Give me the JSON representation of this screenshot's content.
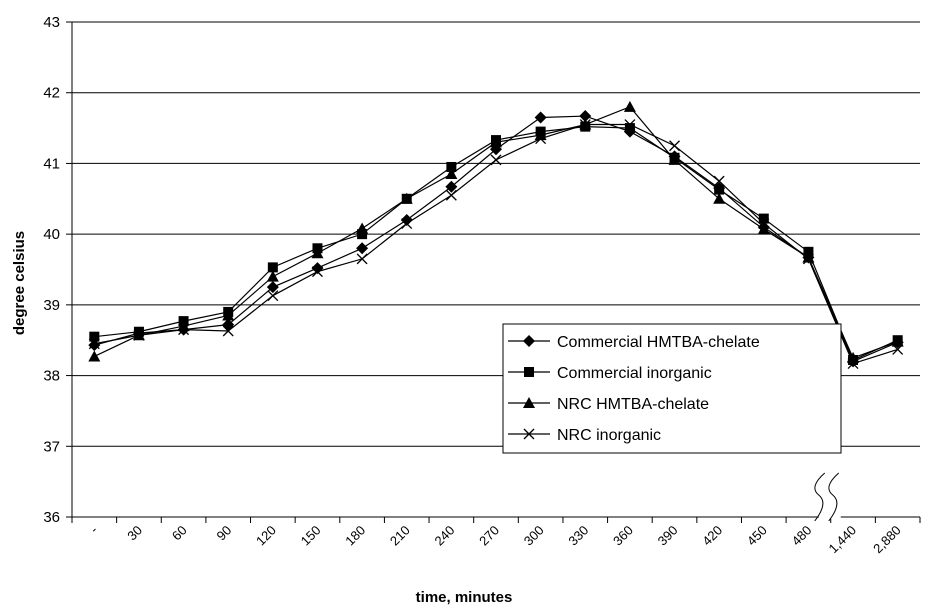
{
  "chart_data": {
    "type": "line",
    "xlabel": "time, minutes",
    "ylabel": "degree celsius",
    "ylim": [
      36,
      43
    ],
    "y_ticks": [
      "36",
      "37",
      "38",
      "39",
      "40",
      "41",
      "42",
      "43"
    ],
    "categories": [
      "-",
      "30",
      "60",
      "90",
      "120",
      "150",
      "180",
      "210",
      "240",
      "270",
      "300",
      "330",
      "360",
      "390",
      "420",
      "450",
      "480",
      "1,440",
      "2,880"
    ],
    "axis_break_between": [
      "480",
      "1,440"
    ],
    "grid": "horizontal",
    "legend_position": "right, lower-middle",
    "series": [
      {
        "name": "Commercial HMTBA-chelate",
        "marker": "diamond",
        "values": [
          38.43,
          38.6,
          38.65,
          38.72,
          39.25,
          39.52,
          39.8,
          40.2,
          40.67,
          41.2,
          41.65,
          41.67,
          41.45,
          41.1,
          40.65,
          40.1,
          39.67,
          38.2,
          38.47
        ]
      },
      {
        "name": "Commercial inorganic",
        "marker": "square",
        "values": [
          38.55,
          38.62,
          38.77,
          38.9,
          39.53,
          39.8,
          40.0,
          40.5,
          40.95,
          41.33,
          41.45,
          41.52,
          41.5,
          41.08,
          40.63,
          40.22,
          39.75,
          38.22,
          38.5
        ]
      },
      {
        "name": "NRC HMTBA-chelate",
        "marker": "triangle",
        "values": [
          38.27,
          38.57,
          38.7,
          38.85,
          39.4,
          39.73,
          40.08,
          40.5,
          40.85,
          41.3,
          41.4,
          41.55,
          41.8,
          41.05,
          40.5,
          40.07,
          39.67,
          38.25,
          38.48
        ]
      },
      {
        "name": "NRC inorganic",
        "marker": "x",
        "values": [
          38.45,
          38.57,
          38.65,
          38.63,
          39.13,
          39.47,
          39.65,
          40.15,
          40.55,
          41.05,
          41.35,
          41.55,
          41.55,
          41.25,
          40.75,
          40.15,
          39.65,
          38.17,
          38.37
        ]
      }
    ]
  }
}
